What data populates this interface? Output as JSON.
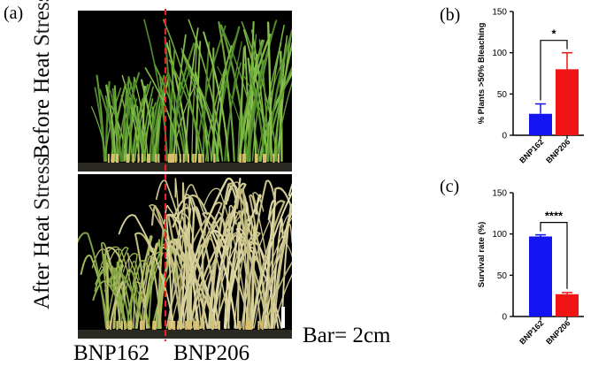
{
  "figure": {
    "panel_a_label": "(a)",
    "panel_b_label": "(b)",
    "panel_c_label": "(c)",
    "top_row_label": "Before Heat",
    "top_row_label_sub": "Stress",
    "bottom_row_label": "After Heat",
    "bottom_row_label_sub": "Stress",
    "genotype_left": "BNP162",
    "genotype_right": "BNP206",
    "scale_bar_text": "Bar= 2cm",
    "colors": {
      "divider": "#e8202a",
      "bnp162": "#1414f0",
      "bnp206": "#f01414",
      "leaf_green": "#5f9e32",
      "leaf_pale": "#c9c58c"
    }
  },
  "chart_data": [
    {
      "type": "bar",
      "panel": "(b)",
      "categories": [
        "BNP162",
        "BNP206"
      ],
      "values": [
        26,
        80
      ],
      "errors": [
        12,
        20
      ],
      "colors": [
        "#1414f0",
        "#f01414"
      ],
      "ylabel": "% Plants >50% Bleaching",
      "xlabel": "",
      "ylim": [
        0,
        150
      ],
      "yticks": [
        "0",
        "50",
        "100",
        "150"
      ],
      "significance": "*"
    },
    {
      "type": "bar",
      "panel": "(c)",
      "categories": [
        "BNP162",
        "BNP206"
      ],
      "values": [
        97,
        27
      ],
      "errors": [
        2,
        2
      ],
      "colors": [
        "#1414f0",
        "#f01414"
      ],
      "ylabel": "Survival rate (%)",
      "xlabel": "",
      "ylim": [
        0,
        150
      ],
      "yticks": [
        "0",
        "50",
        "100",
        "150"
      ],
      "significance": "****"
    }
  ]
}
